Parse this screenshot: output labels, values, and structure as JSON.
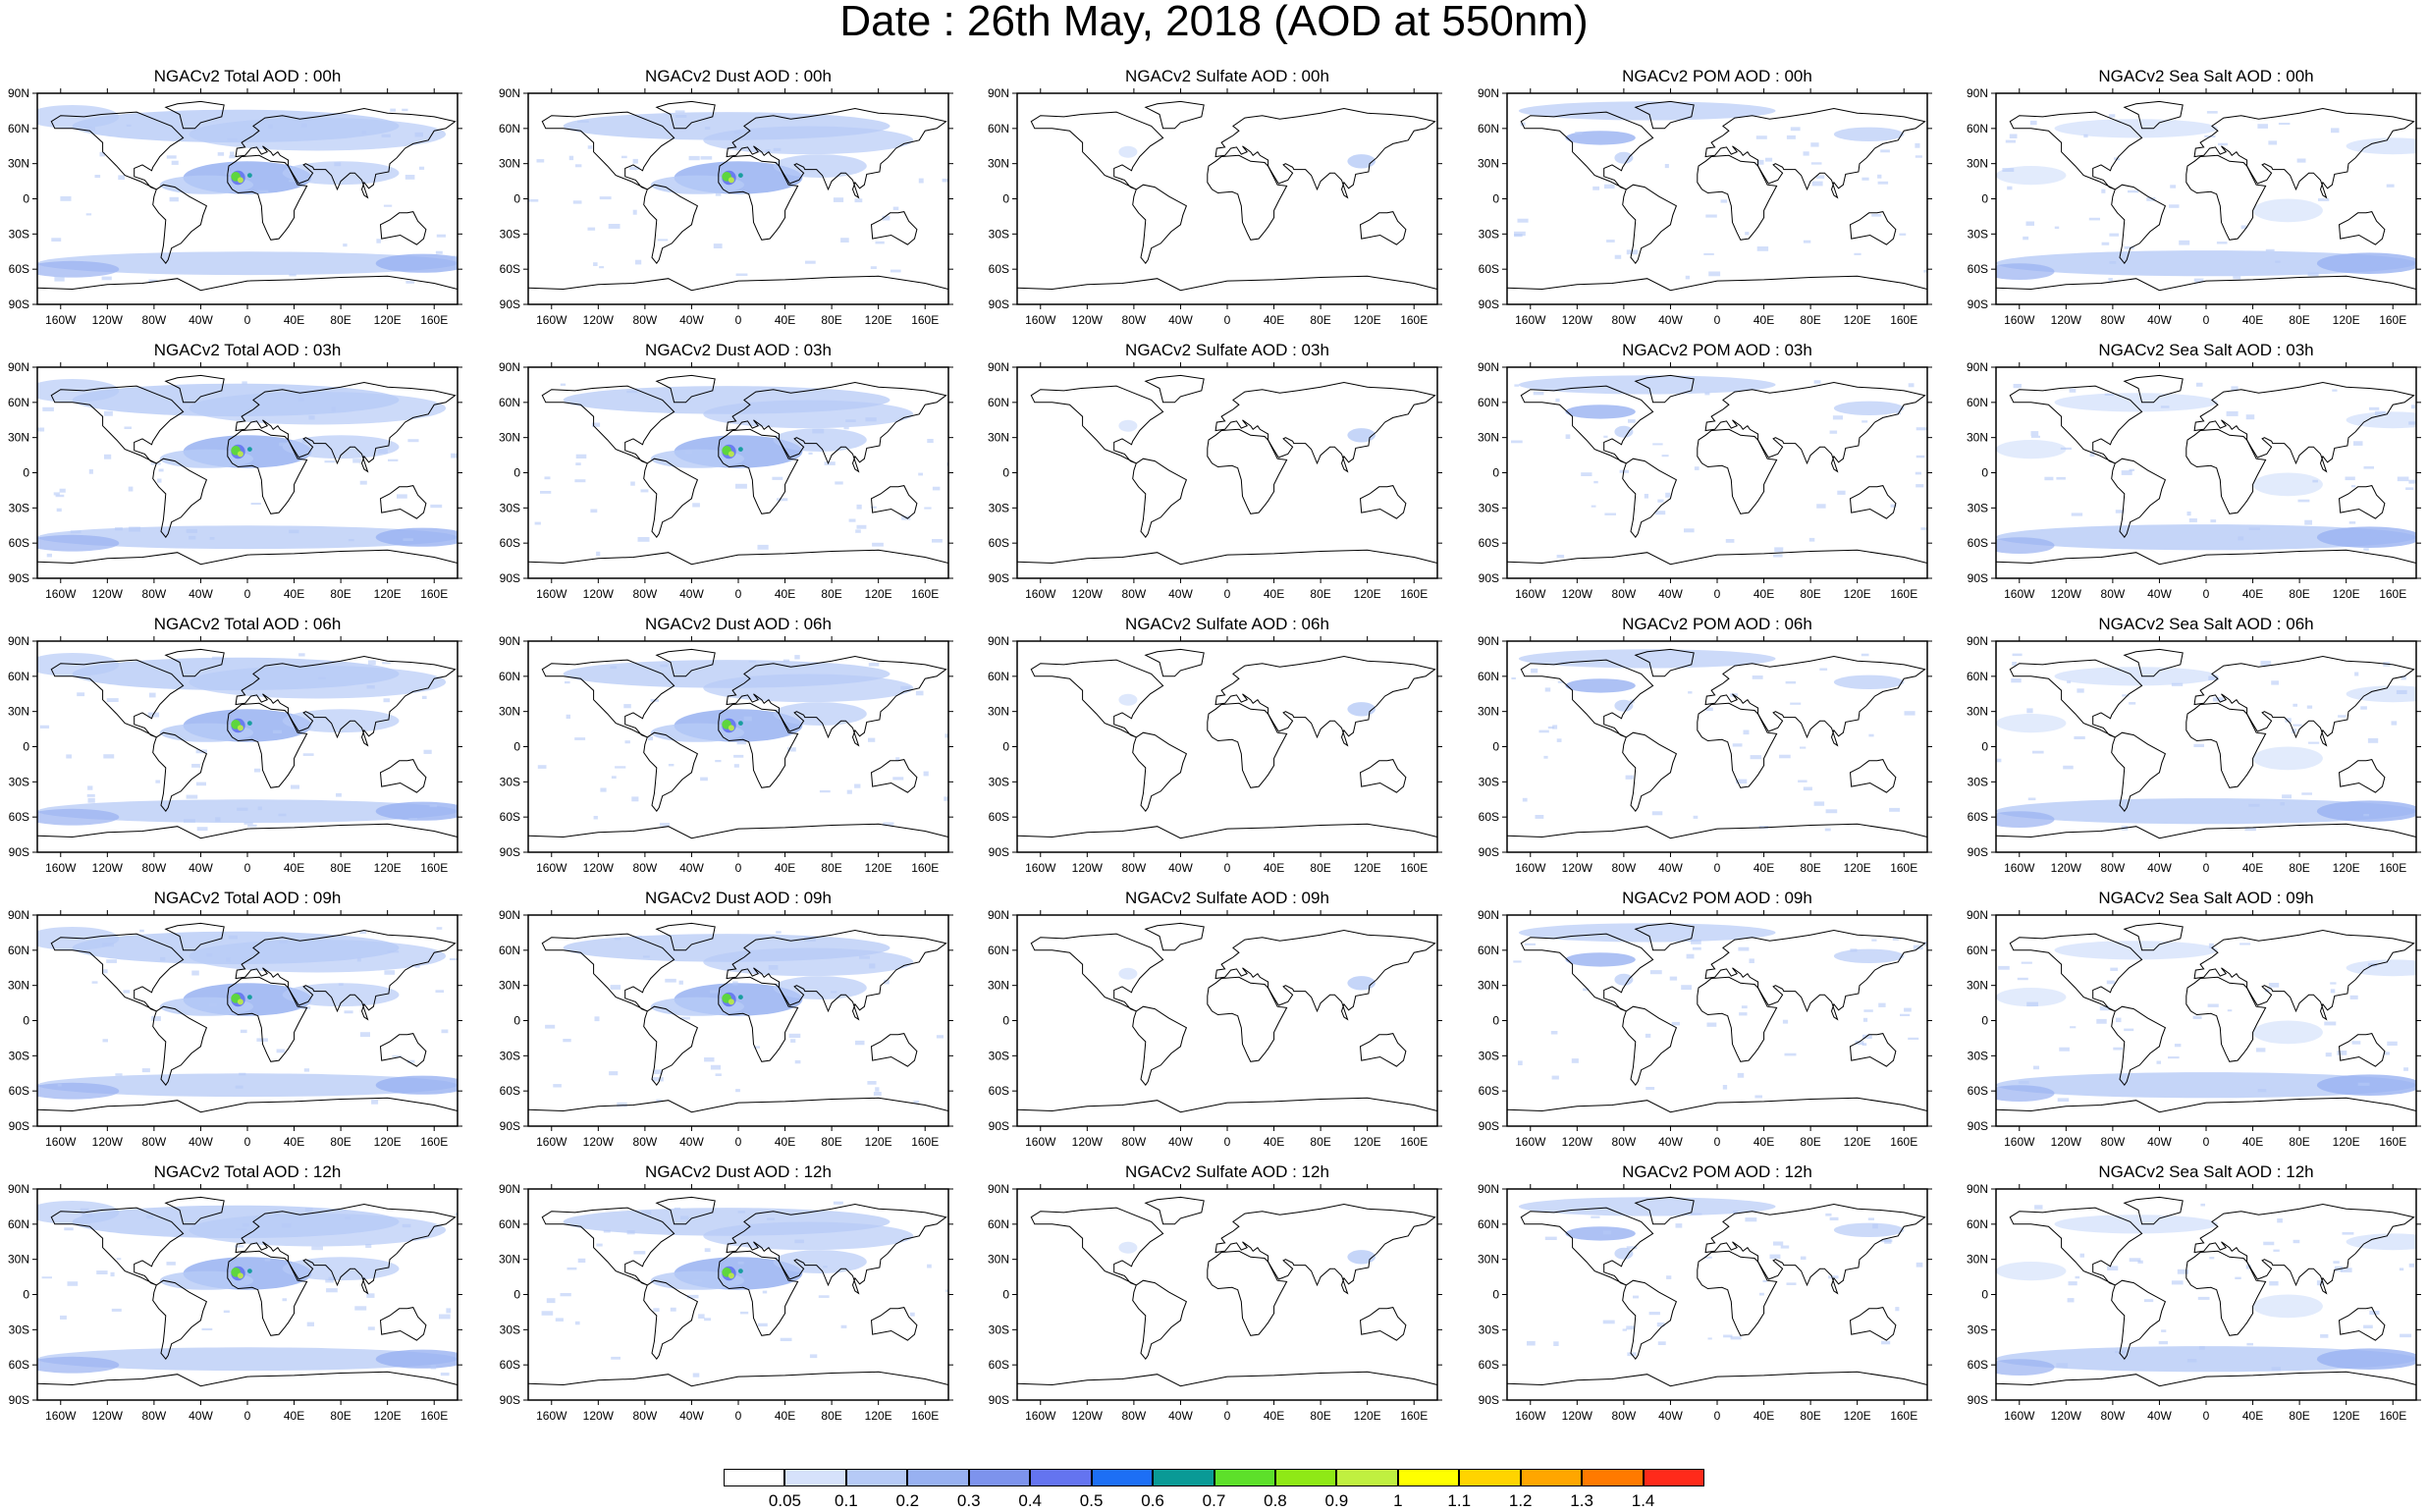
{
  "title": "Date : 26th May, 2018 (AOD at 550nm)",
  "lat_ticks": [
    "90N",
    "60N",
    "30N",
    "0",
    "30S",
    "60S",
    "90S"
  ],
  "lon_ticks": [
    "160W",
    "120W",
    "80W",
    "40W",
    "0",
    "40E",
    "80E",
    "120E",
    "160E"
  ],
  "columns": [
    {
      "key": "total",
      "color": "#8fa8ec"
    },
    {
      "key": "dust",
      "color": "#8fa8ec"
    },
    {
      "key": "sulfate",
      "color": "#8fa8ec"
    },
    {
      "key": "pom",
      "color": "#8fa8ec"
    },
    {
      "key": "seasalt",
      "color": "#8fa8ec"
    }
  ],
  "panels": [
    [
      "NGACv2 Total AOD : 00h",
      "NGACv2 Dust AOD : 00h",
      "NGACv2 Sulfate AOD : 00h",
      "NGACv2 POM AOD : 00h",
      "NGACv2 Sea Salt AOD : 00h"
    ],
    [
      "NGACv2 Total AOD : 03h",
      "NGACv2 Dust AOD : 03h",
      "NGACv2 Sulfate AOD : 03h",
      "NGACv2 POM AOD : 03h",
      "NGACv2 Sea Salt AOD : 03h"
    ],
    [
      "NGACv2 Total AOD : 06h",
      "NGACv2 Dust AOD : 06h",
      "NGACv2 Sulfate AOD : 06h",
      "NGACv2 POM AOD : 06h",
      "NGACv2 Sea Salt AOD : 06h"
    ],
    [
      "NGACv2 Total AOD : 09h",
      "NGACv2 Dust AOD : 09h",
      "NGACv2 Sulfate AOD : 09h",
      "NGACv2 POM AOD : 09h",
      "NGACv2 Sea Salt  AOD : 09h"
    ],
    [
      "NGACv2 Total AOD  : 12h",
      "NGACv2 Dust AOD : 12h",
      "NGACv2 Sulfate AOD : 12h",
      "NGACv2 POM  AOD : 12h",
      "NGACv2 Sea Salt AOD : 12h"
    ]
  ],
  "colorbar": {
    "labels": [
      "0.05",
      "0.1",
      "0.2",
      "0.3",
      "0.4",
      "0.5",
      "0.6",
      "0.7",
      "0.8",
      "0.9",
      "1",
      "1.1",
      "1.2",
      "1.3",
      "1.4"
    ],
    "colors": [
      "#ffffff",
      "#d6e2fb",
      "#b6caf6",
      "#98b1f1",
      "#7d93ed",
      "#6474f0",
      "#1d6ff5",
      "#0a9a96",
      "#5de02a",
      "#8fe916",
      "#c0f040",
      "#ffff00",
      "#ffd400",
      "#ffa600",
      "#ff7a00",
      "#ff2a1a"
    ]
  }
}
